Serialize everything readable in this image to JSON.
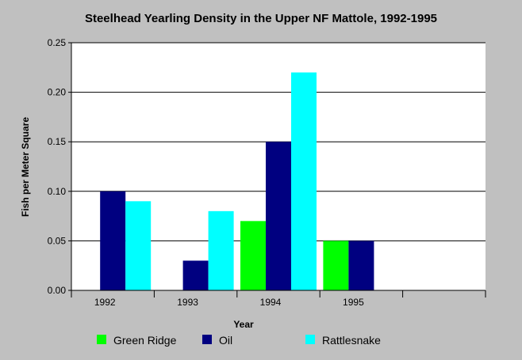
{
  "chart_data": {
    "type": "bar",
    "title": "Steelhead Yearling Density in the Upper NF Mattole, 1992-1995",
    "xlabel": "Year",
    "ylabel": "Fish per Meter Square",
    "categories": [
      "1992",
      "1993",
      "1994",
      "1995"
    ],
    "series": [
      {
        "name": "Green Ridge",
        "color": "#00ff00",
        "values": [
          0,
          0,
          0.07,
          0.05
        ]
      },
      {
        "name": "Oil",
        "color": "#000080",
        "values": [
          0.1,
          0.03,
          0.15,
          0.05
        ]
      },
      {
        "name": "Rattlesnake",
        "color": "#00ffff",
        "values": [
          0.09,
          0.08,
          0.22,
          0
        ]
      }
    ],
    "ylim": [
      0,
      0.25
    ],
    "yticks": [
      "0.00",
      "0.05",
      "0.10",
      "0.15",
      "0.20",
      "0.25"
    ],
    "grid": true,
    "legend_position": "bottom",
    "colors": {
      "background": "#c0c0c0",
      "plot_background": "#ffffff"
    }
  }
}
